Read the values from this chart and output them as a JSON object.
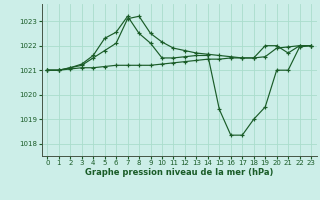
{
  "background_color": "#cceee8",
  "grid_color": "#aaddcc",
  "line_color": "#1a5c28",
  "xlabel": "Graphe pression niveau de la mer (hPa)",
  "xlim": [
    -0.5,
    23.5
  ],
  "ylim": [
    1017.5,
    1023.7
  ],
  "yticks": [
    1018,
    1019,
    1020,
    1021,
    1022,
    1023
  ],
  "xticks": [
    0,
    1,
    2,
    3,
    4,
    5,
    6,
    7,
    8,
    9,
    10,
    11,
    12,
    13,
    14,
    15,
    16,
    17,
    18,
    19,
    20,
    21,
    22,
    23
  ],
  "series": [
    [
      1021.0,
      1021.0,
      1021.05,
      1021.1,
      1021.1,
      1021.15,
      1021.2,
      1021.2,
      1021.2,
      1021.2,
      1021.25,
      1021.3,
      1021.35,
      1021.4,
      1021.45,
      1021.45,
      1021.5,
      1021.5,
      1021.5,
      1021.55,
      1021.9,
      1021.95,
      1022.0,
      1022.0
    ],
    [
      1021.0,
      1021.0,
      1021.1,
      1021.2,
      1021.5,
      1021.8,
      1022.1,
      1023.1,
      1023.2,
      1022.5,
      1022.15,
      1021.9,
      1021.8,
      1021.7,
      1021.65,
      1021.6,
      1021.55,
      1021.5,
      1021.5,
      1022.0,
      1022.0,
      1021.7,
      1022.0,
      1022.0
    ],
    [
      1021.0,
      1021.0,
      1021.1,
      1021.25,
      1021.6,
      1022.3,
      1022.55,
      1023.2,
      1022.5,
      1022.1,
      1021.5,
      1021.5,
      1021.55,
      1021.6,
      1021.6,
      1019.4,
      1018.35,
      1018.35,
      1019.0,
      1019.5,
      1021.0,
      1021.0,
      1021.95,
      1022.0
    ]
  ]
}
